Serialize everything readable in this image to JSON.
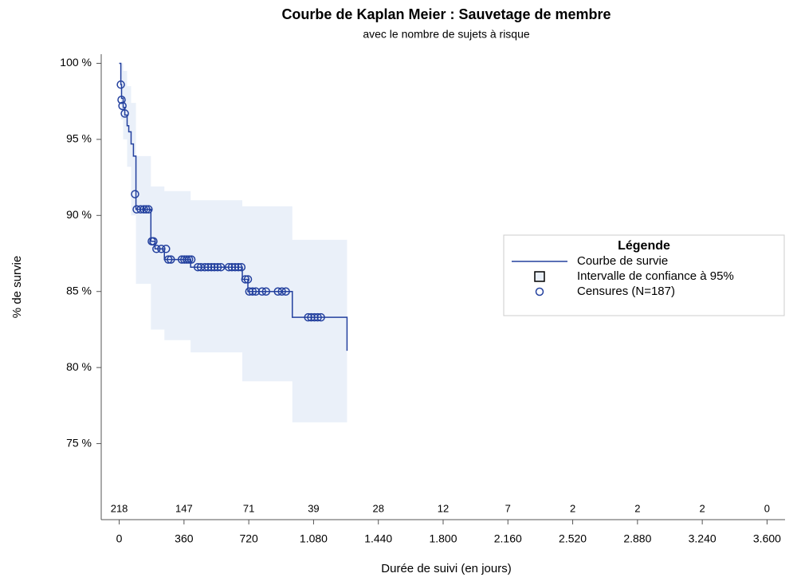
{
  "chart_data": {
    "type": "kaplan-meier",
    "title": "Courbe de Kaplan Meier : Sauvetage de membre",
    "subtitle": "avec le nombre de sujets à risque",
    "x_label": "Durée de suivi (en jours)",
    "y_label": "% de survie",
    "xlim": [
      -100,
      3700
    ],
    "ylim": [
      70,
      100.6
    ],
    "xticks": [
      0,
      360,
      720,
      {
        "value": 1080,
        "label": "1.080"
      },
      {
        "value": 1440,
        "label": "1.440"
      },
      {
        "value": 1800,
        "label": "1.800"
      },
      {
        "value": 2160,
        "label": "2.160"
      },
      {
        "value": 2520,
        "label": "2.520"
      },
      {
        "value": 2880,
        "label": "2.880"
      },
      {
        "value": 3240,
        "label": "3.240"
      },
      {
        "value": 3600,
        "label": "3.600"
      }
    ],
    "yticks": [
      {
        "value": 75,
        "label": "75 %"
      },
      {
        "value": 80,
        "label": "80 %"
      },
      {
        "value": 85,
        "label": "85 %"
      },
      {
        "value": 90,
        "label": "90 %"
      },
      {
        "value": 95,
        "label": "95 %"
      },
      {
        "value": 100,
        "label": "100 %"
      }
    ],
    "series": [
      {
        "name": "Courbe de survie",
        "color": "#23409e",
        "x": [
          0,
          9,
          13,
          22,
          31,
          44,
          53,
          66,
          79,
          93,
          176,
          199,
          251,
          397,
          684,
          715,
          962,
          1266
        ],
        "values": [
          100,
          98.6,
          97.7,
          97.1,
          96.6,
          95.9,
          95.5,
          94.7,
          93.9,
          90.4,
          88.3,
          87.8,
          87.1,
          86.6,
          85.8,
          85.0,
          83.3,
          81.1
        ]
      }
    ],
    "ci": {
      "name": "Intervalle de confiance à 95%",
      "color": "#eaf0f9",
      "x": [
        0,
        9,
        22,
        44,
        66,
        93,
        176,
        251,
        397,
        684,
        962,
        1266
      ],
      "lower": [
        100,
        96.3,
        95.0,
        93.2,
        90.0,
        85.5,
        82.5,
        81.8,
        81.0,
        79.1,
        76.4,
        76.4
      ],
      "upper": [
        100,
        100,
        99.5,
        98.5,
        97.4,
        93.9,
        91.9,
        91.6,
        91.0,
        90.6,
        88.4,
        88.4
      ]
    },
    "censored": {
      "name": "Censures (N=187)",
      "color": "#23409e",
      "x": [
        9,
        13,
        18,
        31,
        88,
        97,
        119,
        137,
        150,
        163,
        181,
        190,
        207,
        234,
        260,
        273,
        287,
        348,
        362,
        375,
        388,
        401,
        437,
        454,
        476,
        494,
        512,
        529,
        547,
        565,
        609,
        626,
        644,
        662,
        679,
        701,
        715,
        723,
        741,
        759,
        794,
        816,
        882,
        904,
        926,
        1050,
        1067,
        1085,
        1103,
        1121
      ],
      "values": [
        98.6,
        97.6,
        97.2,
        96.7,
        91.4,
        90.4,
        90.4,
        90.4,
        90.4,
        90.4,
        88.3,
        88.3,
        87.8,
        87.8,
        87.8,
        87.1,
        87.1,
        87.1,
        87.1,
        87.1,
        87.1,
        87.1,
        86.6,
        86.6,
        86.6,
        86.6,
        86.6,
        86.6,
        86.6,
        86.6,
        86.6,
        86.6,
        86.6,
        86.6,
        86.6,
        85.8,
        85.8,
        85.0,
        85.0,
        85.0,
        85.0,
        85.0,
        85.0,
        85.0,
        85.0,
        83.3,
        83.3,
        83.3,
        83.3,
        83.3
      ]
    },
    "at_risk": [
      218,
      147,
      71,
      39,
      28,
      12,
      7,
      2,
      2,
      2,
      0
    ],
    "legend": {
      "title": "Légende",
      "position": "right"
    }
  }
}
